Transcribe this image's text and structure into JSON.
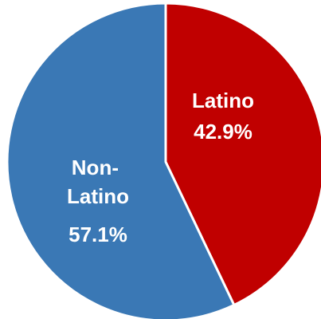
{
  "chart_data": {
    "type": "pie",
    "slices": [
      {
        "label": "Latino",
        "value": 42.9,
        "value_label": "42.9%",
        "color": "#C00000"
      },
      {
        "label": "Non-Latino",
        "value": 57.1,
        "value_label": "57.1%",
        "color": "#3A78B5"
      }
    ],
    "title": "",
    "legend": "none",
    "start": "12 o'clock",
    "direction": "clockwise",
    "separator_color": "#ffffff"
  }
}
